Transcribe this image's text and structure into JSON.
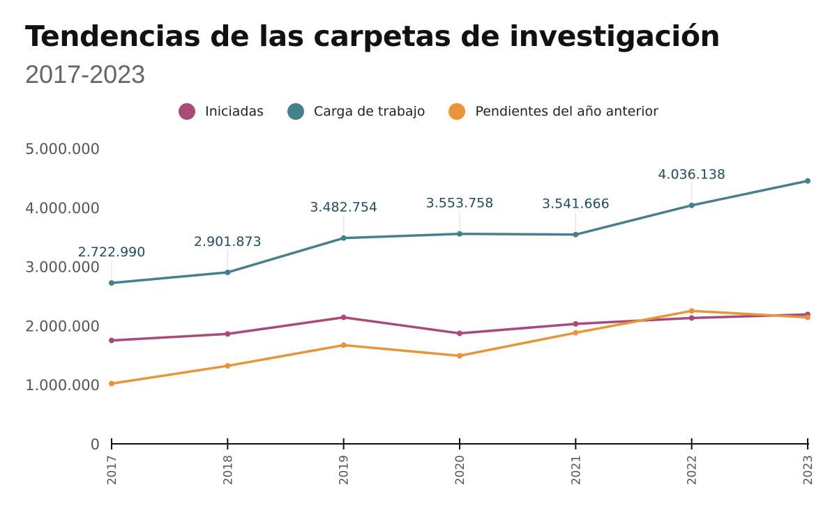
{
  "header": {
    "title": "Tendencias de las carpetas de investigación",
    "subtitle": "2017-2023"
  },
  "chart_data": {
    "type": "line",
    "title": "Tendencias de las carpetas de investigación",
    "subtitle": "2017-2023",
    "xlabel": "",
    "ylabel": "",
    "x": [
      "2017",
      "2018",
      "2019",
      "2020",
      "2021",
      "2022",
      "2023"
    ],
    "ylim": [
      0,
      5000000
    ],
    "yticks": [
      0,
      1000000,
      2000000,
      3000000,
      4000000,
      5000000
    ],
    "ytick_labels": [
      "0",
      "1.000.000",
      "2.000.000",
      "3.000.000",
      "4.000.000",
      "5.000.000"
    ],
    "grid": false,
    "legend_position": "top-center",
    "series": [
      {
        "name": "Iniciadas",
        "color": "#a84a7a",
        "values": [
          1750000,
          1860000,
          2140000,
          1870000,
          2030000,
          2130000,
          2190000
        ]
      },
      {
        "name": "Carga de trabajo",
        "color": "#46808c",
        "values": [
          2722990,
          2901873,
          3482754,
          3553758,
          3541666,
          4036138,
          4450000
        ],
        "data_labels": [
          "2.722.990",
          "2.901.873",
          "3.482.754",
          "3.553.758",
          "3.541.666",
          "4.036.138",
          ""
        ]
      },
      {
        "name": "Pendientes del año anterior",
        "color": "#e8943a",
        "values": [
          1020000,
          1320000,
          1670000,
          1490000,
          1880000,
          2250000,
          2140000
        ]
      }
    ]
  }
}
